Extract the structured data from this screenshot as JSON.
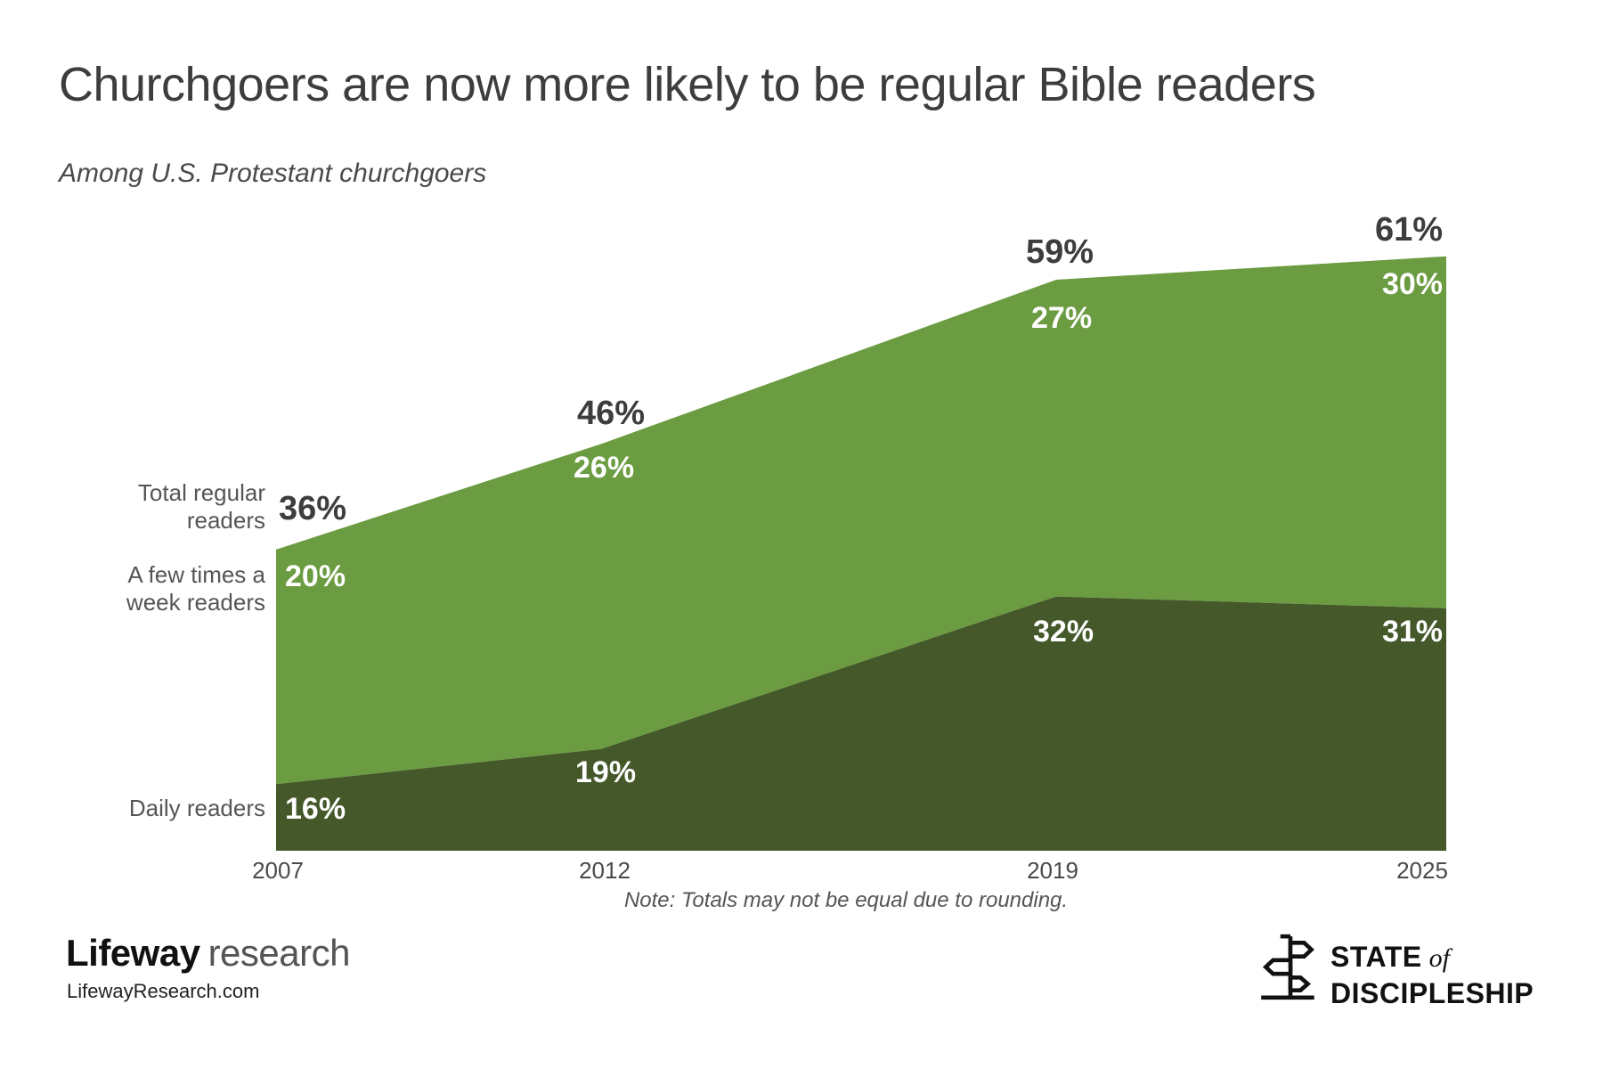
{
  "title": "Churchgoers are now more likely to be regular Bible readers",
  "subtitle": "Among U.S. Protestant churchgoers",
  "chart_data": {
    "type": "area",
    "stacked": true,
    "title": "Churchgoers are now more likely to be regular Bible readers",
    "subtitle": "Among U.S. Protestant churchgoers",
    "x": [
      "2007",
      "2012",
      "2019",
      "2025"
    ],
    "x_numeric": [
      2007,
      2012,
      2019,
      2025
    ],
    "series": [
      {
        "name": "Daily readers",
        "color": "#44582A",
        "values": [
          16,
          19,
          32,
          31
        ],
        "labels": [
          "16%",
          "19%",
          "32%",
          "31%"
        ]
      },
      {
        "name": "A few times a week readers",
        "color": "#6B9C41",
        "values": [
          20,
          26,
          27,
          30
        ],
        "labels": [
          "20%",
          "26%",
          "27%",
          "30%"
        ]
      }
    ],
    "totals": {
      "name": "Total regular readers",
      "values": [
        36,
        46,
        59,
        61
      ],
      "labels": [
        "36%",
        "46%",
        "59%",
        "61%"
      ]
    },
    "ylim": [
      10.33,
      65
    ],
    "grid": false,
    "legend_position": "left-labels",
    "note": "Note: Totals may not be equal due to rounding."
  },
  "left_labels": {
    "total_line1": "Total regular",
    "total_line2": "readers",
    "few_line1": "A few times a",
    "few_line2": "week readers",
    "daily": "Daily readers"
  },
  "note": "Note: Totals may not be equal due to rounding.",
  "footer": {
    "brand_bold": "Lifeway",
    "brand_light": "research",
    "website": "LifewayResearch.com",
    "sod_state": "STATE",
    "sod_of": "of",
    "sod_discipleship": "DISCIPLESHIP"
  },
  "colors": {
    "light_green": "#6B9C41",
    "dark_green": "#44582A",
    "title_text": "#3D3D3D",
    "label_gray": "#555555",
    "year_gray": "#4A4A4A",
    "white_label": "#FFFFFF"
  }
}
